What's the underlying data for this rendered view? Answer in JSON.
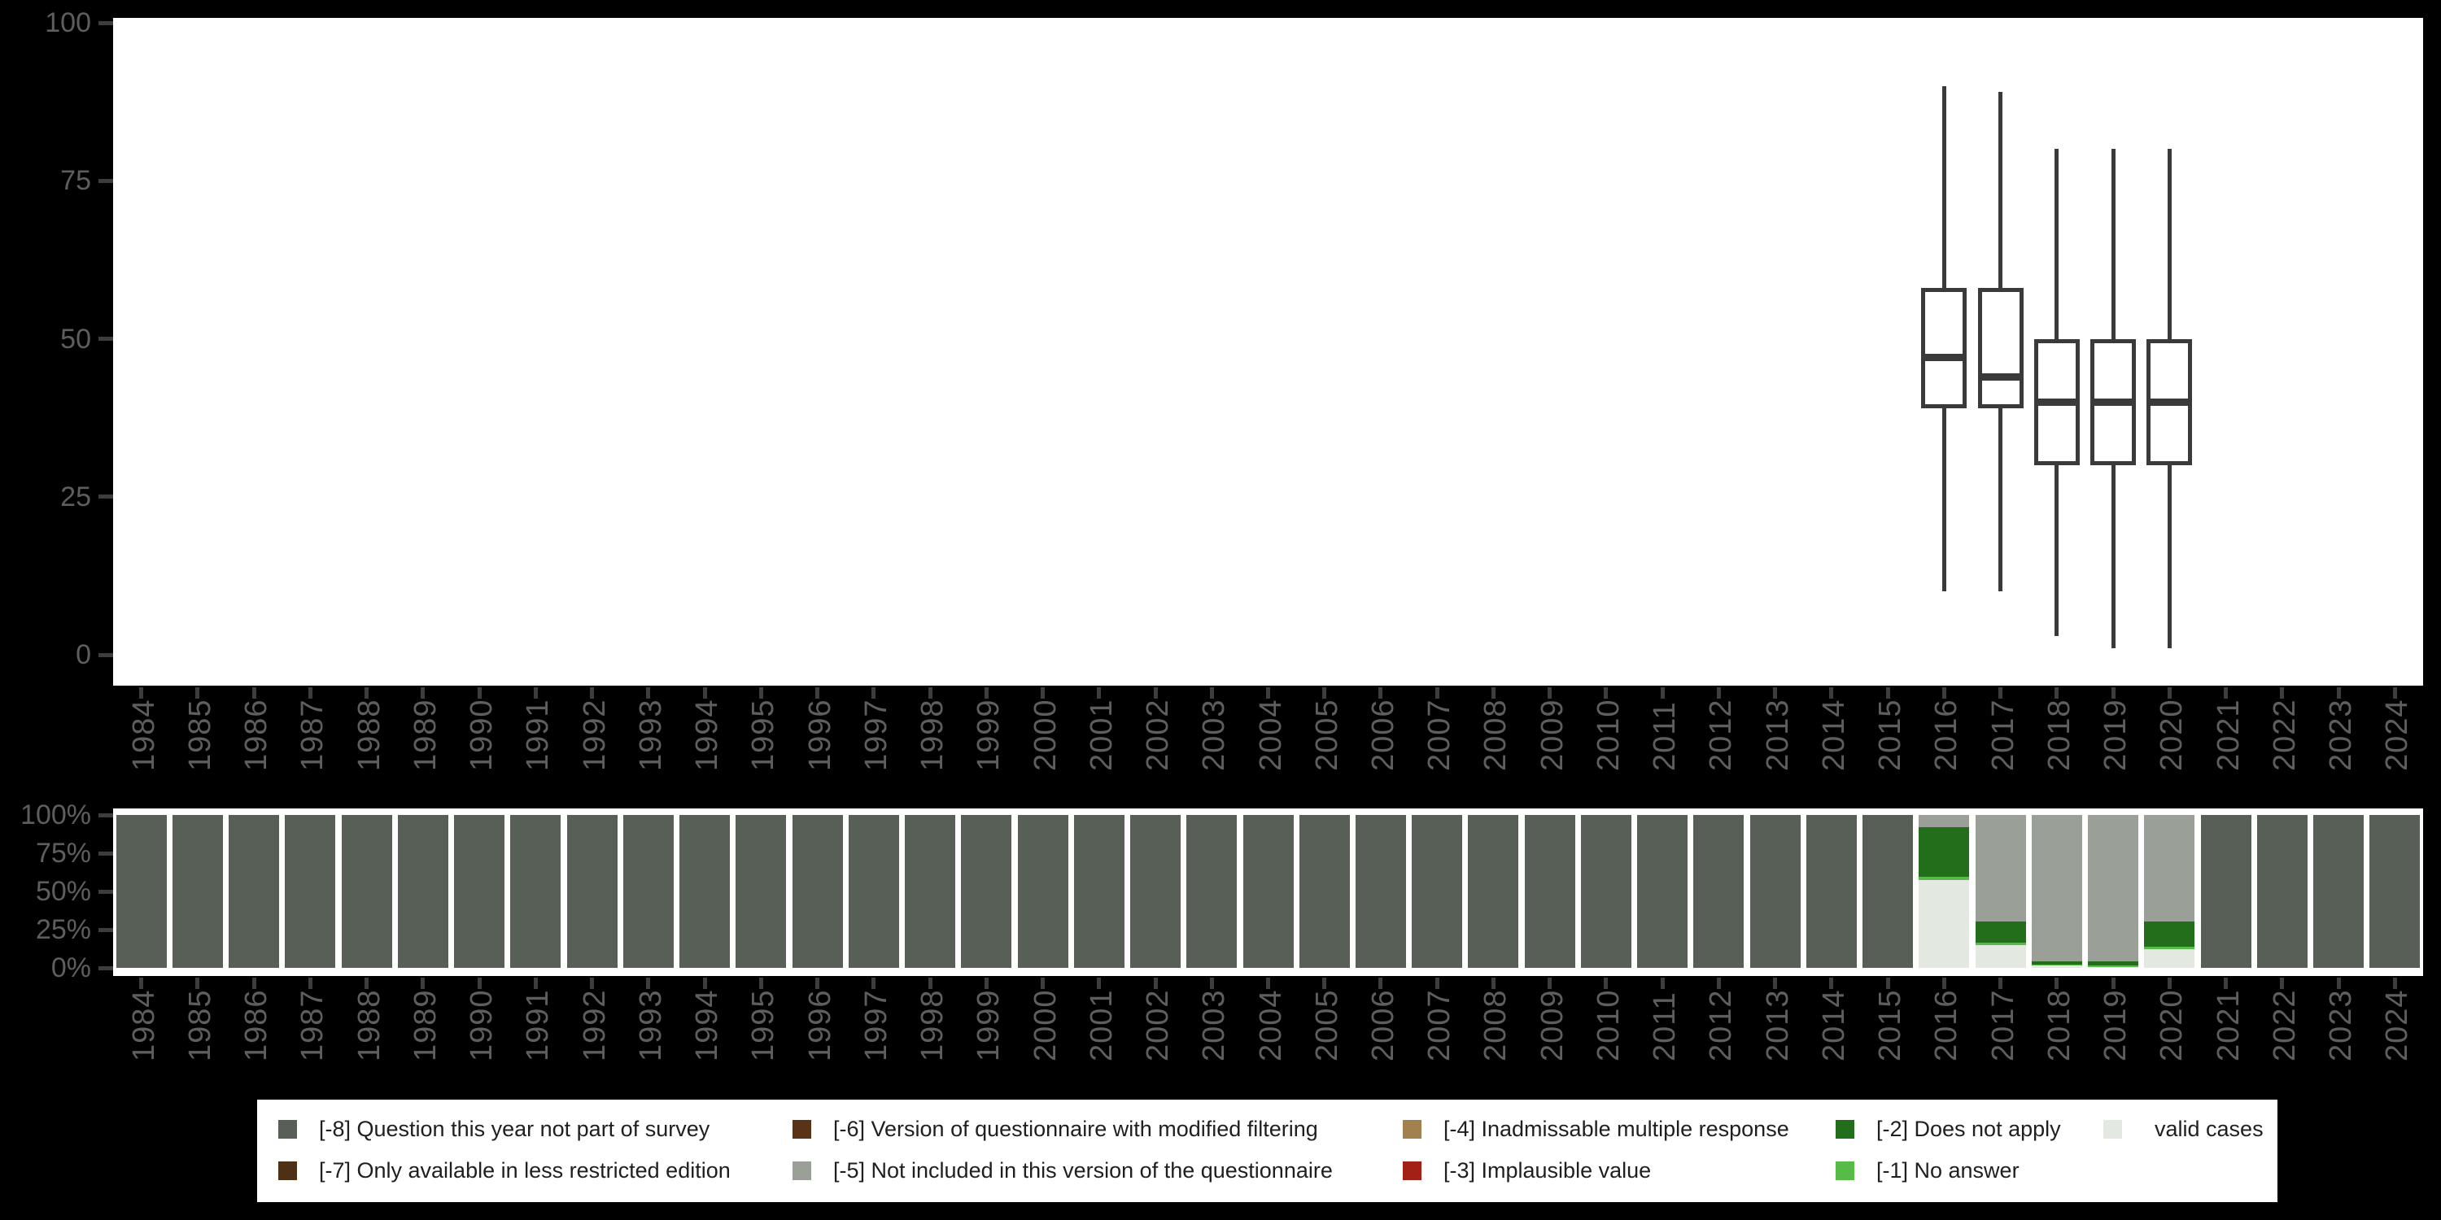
{
  "figure": {
    "background": "#000000",
    "panel_background": "#ffffff",
    "axis_text_color": "#5e5e5e",
    "tick_mark_color": "#3d3d3d",
    "box_stroke_color": "#3a3a3a",
    "legend_background": "#ffffff",
    "legend_text_color": "#1f1f1f"
  },
  "years": [
    "1984",
    "1985",
    "1986",
    "1987",
    "1988",
    "1989",
    "1990",
    "1991",
    "1992",
    "1993",
    "1994",
    "1995",
    "1996",
    "1997",
    "1998",
    "1999",
    "2000",
    "2001",
    "2002",
    "2003",
    "2004",
    "2005",
    "2006",
    "2007",
    "2008",
    "2009",
    "2010",
    "2011",
    "2012",
    "2013",
    "2014",
    "2015",
    "2016",
    "2017",
    "2018",
    "2019",
    "2020",
    "2021",
    "2022",
    "2023",
    "2024"
  ],
  "chart_data": [
    {
      "type": "boxplot",
      "name": "value-distribution-by-year",
      "ylim": [
        0,
        100
      ],
      "yticks": [
        0,
        25,
        50,
        75,
        100
      ],
      "ytick_labels": [
        "0",
        "25",
        "50",
        "75",
        "100"
      ],
      "grid": false,
      "boxes": [
        {
          "year": "2016",
          "min": 10,
          "q1": 39,
          "median": 47,
          "q3": 58,
          "max": 90
        },
        {
          "year": "2017",
          "min": 10,
          "q1": 39,
          "median": 44,
          "q3": 58,
          "max": 89
        },
        {
          "year": "2018",
          "min": 3,
          "q1": 30,
          "median": 40,
          "q3": 50,
          "max": 80
        },
        {
          "year": "2019",
          "min": 1,
          "q1": 30,
          "median": 40,
          "q3": 50,
          "max": 80
        },
        {
          "year": "2020",
          "min": 1,
          "q1": 30,
          "median": 40,
          "q3": 50,
          "max": 80
        }
      ]
    },
    {
      "type": "bar",
      "name": "missing-value-composition-by-year",
      "stacked": true,
      "unit": "%",
      "ylim": [
        0,
        100
      ],
      "yticks": [
        0,
        25,
        50,
        75,
        100
      ],
      "ytick_labels": [
        "0%",
        "25%",
        "50%",
        "75%",
        "100%"
      ],
      "stack_order": [
        "valid",
        "no_answer",
        "does_not_apply",
        "not_included",
        "not_part"
      ],
      "bars": [
        {
          "year": "1984",
          "segments": {
            "not_part": 100
          }
        },
        {
          "year": "1985",
          "segments": {
            "not_part": 100
          }
        },
        {
          "year": "1986",
          "segments": {
            "not_part": 100
          }
        },
        {
          "year": "1987",
          "segments": {
            "not_part": 100
          }
        },
        {
          "year": "1988",
          "segments": {
            "not_part": 100
          }
        },
        {
          "year": "1989",
          "segments": {
            "not_part": 100
          }
        },
        {
          "year": "1990",
          "segments": {
            "not_part": 100
          }
        },
        {
          "year": "1991",
          "segments": {
            "not_part": 100
          }
        },
        {
          "year": "1992",
          "segments": {
            "not_part": 100
          }
        },
        {
          "year": "1993",
          "segments": {
            "not_part": 100
          }
        },
        {
          "year": "1994",
          "segments": {
            "not_part": 100
          }
        },
        {
          "year": "1995",
          "segments": {
            "not_part": 100
          }
        },
        {
          "year": "1996",
          "segments": {
            "not_part": 100
          }
        },
        {
          "year": "1997",
          "segments": {
            "not_part": 100
          }
        },
        {
          "year": "1998",
          "segments": {
            "not_part": 100
          }
        },
        {
          "year": "1999",
          "segments": {
            "not_part": 100
          }
        },
        {
          "year": "2000",
          "segments": {
            "not_part": 100
          }
        },
        {
          "year": "2001",
          "segments": {
            "not_part": 100
          }
        },
        {
          "year": "2002",
          "segments": {
            "not_part": 100
          }
        },
        {
          "year": "2003",
          "segments": {
            "not_part": 100
          }
        },
        {
          "year": "2004",
          "segments": {
            "not_part": 100
          }
        },
        {
          "year": "2005",
          "segments": {
            "not_part": 100
          }
        },
        {
          "year": "2006",
          "segments": {
            "not_part": 100
          }
        },
        {
          "year": "2007",
          "segments": {
            "not_part": 100
          }
        },
        {
          "year": "2008",
          "segments": {
            "not_part": 100
          }
        },
        {
          "year": "2009",
          "segments": {
            "not_part": 100
          }
        },
        {
          "year": "2010",
          "segments": {
            "not_part": 100
          }
        },
        {
          "year": "2011",
          "segments": {
            "not_part": 100
          }
        },
        {
          "year": "2012",
          "segments": {
            "not_part": 100
          }
        },
        {
          "year": "2013",
          "segments": {
            "not_part": 100
          }
        },
        {
          "year": "2014",
          "segments": {
            "not_part": 100
          }
        },
        {
          "year": "2015",
          "segments": {
            "not_part": 100
          }
        },
        {
          "year": "2016",
          "segments": {
            "valid": 57.5,
            "no_answer": 2,
            "does_not_apply": 32.5,
            "not_included": 8
          }
        },
        {
          "year": "2017",
          "segments": {
            "valid": 15,
            "no_answer": 1.5,
            "does_not_apply": 14,
            "not_included": 69.5
          }
        },
        {
          "year": "2018",
          "segments": {
            "valid": 1.5,
            "no_answer": 0.5,
            "does_not_apply": 2,
            "not_included": 96
          }
        },
        {
          "year": "2019",
          "segments": {
            "valid": 0.5,
            "no_answer": 1,
            "does_not_apply": 2.5,
            "not_included": 96
          }
        },
        {
          "year": "2020",
          "segments": {
            "valid": 12,
            "no_answer": 2,
            "does_not_apply": 16.5,
            "not_included": 69.5
          }
        },
        {
          "year": "2021",
          "segments": {
            "not_part": 100
          }
        },
        {
          "year": "2022",
          "segments": {
            "not_part": 100
          }
        },
        {
          "year": "2023",
          "segments": {
            "not_part": 100
          }
        },
        {
          "year": "2024",
          "segments": {
            "not_part": 100
          }
        }
      ]
    }
  ],
  "legend": {
    "rows": 2,
    "columns": 5,
    "items": [
      {
        "key": "not_part",
        "label": "[-8] Question this year not part of survey",
        "color": "#575f56",
        "row": 0,
        "col": 0
      },
      {
        "key": "only_less_restricted",
        "label": "[-7] Only available in less restricted edition",
        "color": "#4e3017",
        "row": 1,
        "col": 0
      },
      {
        "key": "modified_filtering",
        "label": "[-6] Version of questionnaire with modified filtering",
        "color": "#5a3317",
        "row": 0,
        "col": 1
      },
      {
        "key": "not_included",
        "label": "[-5] Not included in this version of the questionnaire",
        "color": "#9aa097",
        "row": 1,
        "col": 1
      },
      {
        "key": "inadmissable",
        "label": "[-4] Inadmissable multiple response",
        "color": "#a3814f",
        "row": 0,
        "col": 2
      },
      {
        "key": "implausible",
        "label": "[-3] Implausible value",
        "color": "#a32017",
        "row": 1,
        "col": 2
      },
      {
        "key": "does_not_apply",
        "label": "[-2] Does not apply",
        "color": "#226e1b",
        "row": 0,
        "col": 3
      },
      {
        "key": "no_answer",
        "label": "[-1] No answer",
        "color": "#57bb47",
        "row": 1,
        "col": 3
      },
      {
        "key": "valid",
        "label": "valid cases",
        "color": "#e3e8e0",
        "row": 0,
        "col": 4
      }
    ]
  }
}
